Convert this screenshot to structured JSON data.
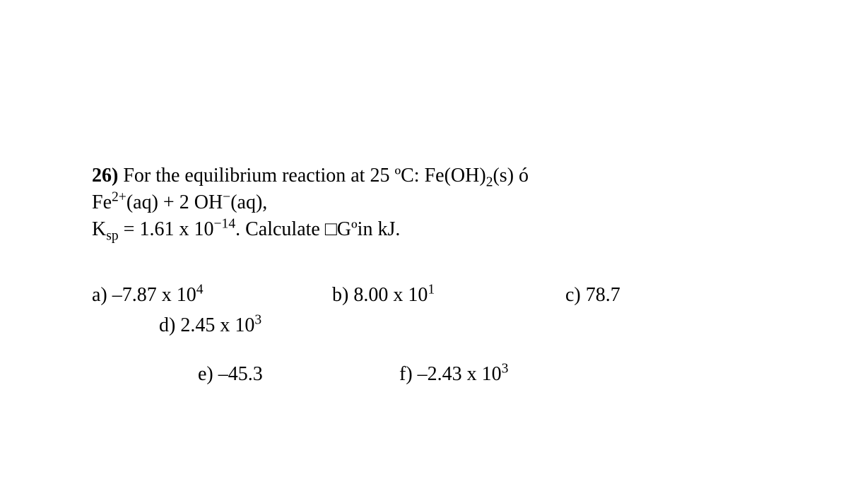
{
  "question": {
    "number": "26)",
    "line1_prefix": " For the equilibrium reaction at 25 ºC:  Fe(OH)",
    "line1_sub": "2",
    "line1_suffix": "(s) ó",
    "line2_species1_base": " Fe",
    "line2_species1_sup": "2+",
    "line2_mid": "(aq)  +  2 OH",
    "line2_species2_sup": "−",
    "line2_suffix": "(aq),",
    "line3_k": "K",
    "line3_ksub": "sp",
    "line3_eq": " = 1.61 x 10",
    "line3_expsup": "−14",
    "line3_calc": ". Calculate ",
    "line3_box": "□",
    "line3_g": "Gºin kJ."
  },
  "choices": {
    "a_pre": "a) –7.87 x 10",
    "a_sup": "4",
    "b_pre": "b) 8.00 x 10",
    "b_sup": "1",
    "c": "c) 78.7",
    "d_pre": "d) 2.45 x 10",
    "d_sup": "3",
    "e": "e) –45.3",
    "f_pre": "f) –2.43 x 10",
    "f_sup": "3"
  },
  "style": {
    "font_family": "Times New Roman",
    "font_size_pt": 21,
    "text_color": "#000000",
    "background_color": "#ffffff"
  }
}
